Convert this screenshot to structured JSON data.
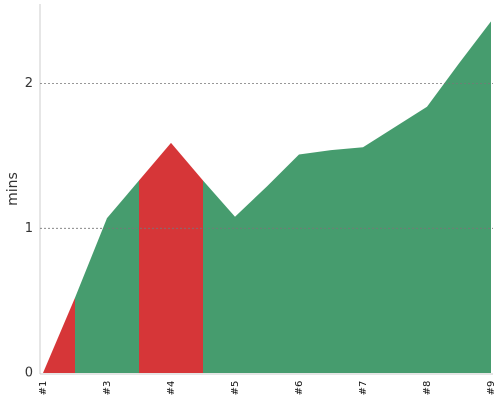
{
  "chart_data": {
    "type": "area",
    "ylabel": "mins",
    "categories": [
      "#1",
      null,
      "#3",
      null,
      "#4",
      null,
      "#5",
      null,
      "#6",
      null,
      "#7",
      null,
      "#8",
      null,
      "#9"
    ],
    "values": [
      0,
      0.52,
      1.07,
      1.33,
      1.59,
      1.33,
      1.08,
      1.29,
      1.51,
      1.54,
      1.56,
      1.7,
      1.84,
      2.14,
      2.43
    ],
    "segment_colors": [
      "#d63638",
      "#469c6e",
      "#469c6e",
      "#d63638",
      "#d63638",
      "#469c6e",
      "#469c6e",
      "#469c6e",
      "#469c6e",
      "#469c6e",
      "#469c6e",
      "#469c6e",
      "#469c6e",
      "#469c6e"
    ],
    "ylim": [
      0,
      2.55
    ],
    "yticks": [
      0,
      1,
      2
    ],
    "grid": true
  }
}
